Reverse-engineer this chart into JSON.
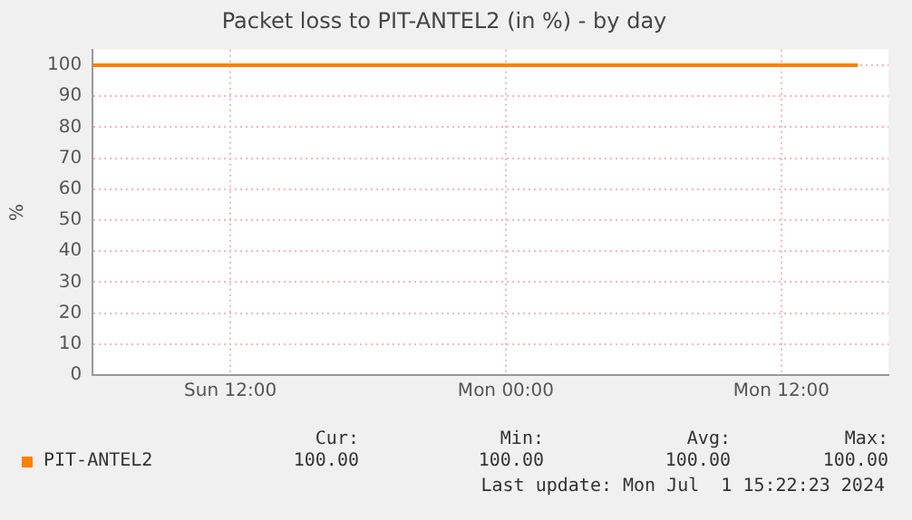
{
  "chart_data": {
    "type": "line",
    "title": "Packet loss to PIT-ANTEL2 (in %) - by day",
    "ylabel": "%",
    "x": [
      "2024-06-30T06:00",
      "2024-06-30T18:00",
      "2024-07-01T06:00",
      "2024-07-01T15:20"
    ],
    "series": [
      {
        "name": "PIT-ANTEL2",
        "color": "#ff7f00",
        "values": [
          100,
          100,
          100,
          100
        ]
      }
    ],
    "xlim": [
      "2024-06-30T06:00",
      "2024-07-01T16:40"
    ],
    "xticks": [
      {
        "value": "2024-06-30T12:00",
        "label": "Sun 12:00"
      },
      {
        "value": "2024-07-01T00:00",
        "label": "Mon 00:00"
      },
      {
        "value": "2024-07-01T12:00",
        "label": "Mon 12:00"
      }
    ],
    "ylim": [
      0,
      105
    ],
    "yticks": [
      0,
      10,
      20,
      30,
      40,
      50,
      60,
      70,
      80,
      90,
      100
    ],
    "grid": true,
    "legend": "bottom left",
    "marker": "none",
    "line_style": "solid",
    "annotations": [
      "Cur:",
      "100.00",
      "Min:",
      "100.00",
      "Avg:",
      "100.00",
      "Max:",
      "100.00",
      "Last update: Mon Jul  1 15:22:23 2024"
    ]
  }
}
